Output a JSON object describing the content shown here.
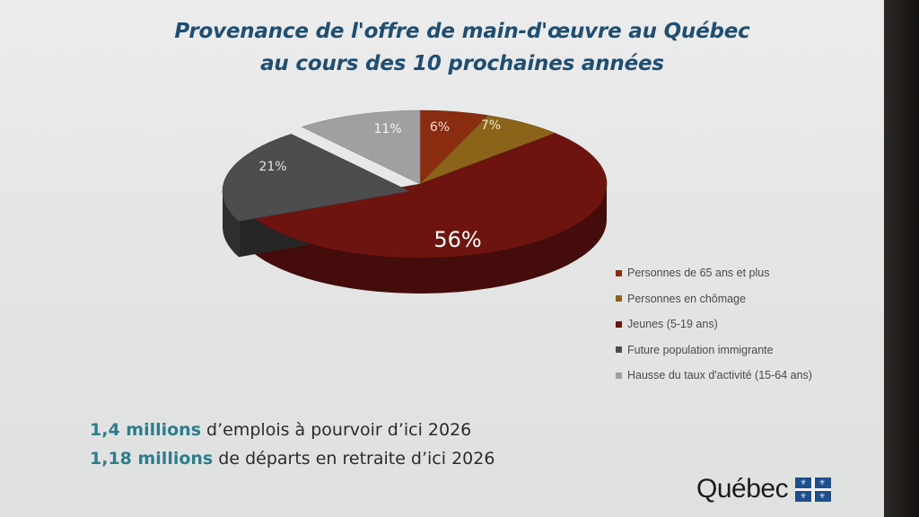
{
  "slide": {
    "title_line1": "Provenance de l'offre de main-d'œuvre au Québec",
    "title_line2": "au cours des 10 prochaines années",
    "stats": [
      {
        "number": "1,4 millions",
        "text": " d’emplois à pourvoir d’ici 2026"
      },
      {
        "number": "1,18 millions",
        "text": " de départs en retraite d’ici 2026"
      }
    ],
    "logo_text": "Québec",
    "logo_icon": "fleur-de-lis-flag-icon"
  },
  "chart_data": {
    "type": "pie",
    "title": "Provenance de l'offre de main-d'œuvre au Québec au cours des 10 prochaines années",
    "legend_position": "right",
    "slices": [
      {
        "label": "Personnes de 65 ans et plus",
        "value": 6,
        "display": "6%",
        "color": "#8a2c10"
      },
      {
        "label": "Personnes en chômage",
        "value": 7,
        "display": "7%",
        "color": "#8c6419"
      },
      {
        "label": "Jeunes (5-19 ans)",
        "value": 56,
        "display": "56%",
        "color": "#6e1410"
      },
      {
        "label": "Future population immigrante",
        "value": 21,
        "display": "21%",
        "color": "#4d4c4e"
      },
      {
        "label": "Hausse du taux d'activité (15-64 ans)",
        "value": 11,
        "display": "11%",
        "color": "#9fa0a2"
      }
    ]
  }
}
